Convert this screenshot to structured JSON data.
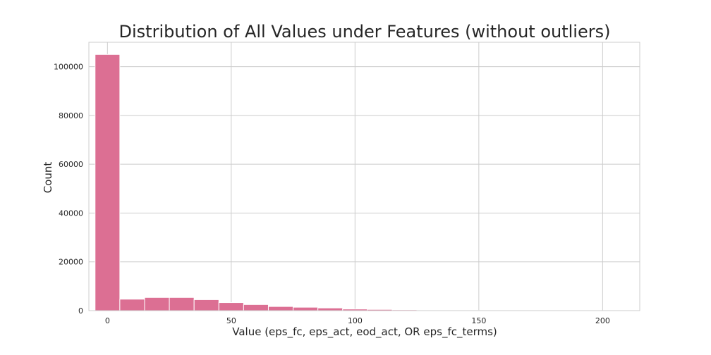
{
  "chart_data": {
    "type": "bar",
    "title": "Distribution of All Values under Features (without outliers)",
    "xlabel": "Value (eps_fc, eps_act, eod_act, OR eps_fc_terms)",
    "ylabel": "Count",
    "xlim": [
      -7.5,
      215
    ],
    "ylim": [
      0,
      110000
    ],
    "x_ticks": [
      {
        "value": 0,
        "label": "0"
      },
      {
        "value": 50,
        "label": "50"
      },
      {
        "value": 100,
        "label": "100"
      },
      {
        "value": 150,
        "label": "150"
      },
      {
        "value": 200,
        "label": "200"
      }
    ],
    "y_ticks": [
      {
        "value": 0,
        "label": "0"
      },
      {
        "value": 20000,
        "label": "20000"
      },
      {
        "value": 40000,
        "label": "40000"
      },
      {
        "value": 60000,
        "label": "60000"
      },
      {
        "value": 80000,
        "label": "80000"
      },
      {
        "value": 100000,
        "label": "100000"
      }
    ],
    "grid": true,
    "bins": [
      {
        "x0": -5,
        "x1": 5,
        "count": 105000
      },
      {
        "x0": 5,
        "x1": 15,
        "count": 4700
      },
      {
        "x0": 15,
        "x1": 25,
        "count": 5400
      },
      {
        "x0": 25,
        "x1": 35,
        "count": 5400
      },
      {
        "x0": 35,
        "x1": 45,
        "count": 4500
      },
      {
        "x0": 45,
        "x1": 55,
        "count": 3300
      },
      {
        "x0": 55,
        "x1": 65,
        "count": 2500
      },
      {
        "x0": 65,
        "x1": 75,
        "count": 1700
      },
      {
        "x0": 75,
        "x1": 85,
        "count": 1400
      },
      {
        "x0": 85,
        "x1": 95,
        "count": 1100
      },
      {
        "x0": 95,
        "x1": 105,
        "count": 650
      },
      {
        "x0": 105,
        "x1": 115,
        "count": 500
      },
      {
        "x0": 115,
        "x1": 125,
        "count": 350
      },
      {
        "x0": 125,
        "x1": 135,
        "count": 200
      },
      {
        "x0": 135,
        "x1": 145,
        "count": 130
      },
      {
        "x0": 145,
        "x1": 155,
        "count": 90
      },
      {
        "x0": 155,
        "x1": 165,
        "count": 60
      },
      {
        "x0": 165,
        "x1": 175,
        "count": 40
      },
      {
        "x0": 175,
        "x1": 185,
        "count": 30
      },
      {
        "x0": 185,
        "x1": 195,
        "count": 20
      },
      {
        "x0": 195,
        "x1": 205,
        "count": 15
      }
    ],
    "colors": {
      "bar": "#dc6f93",
      "bar_edge": "#ffffff",
      "grid": "#cccccc",
      "frame": "#cccccc",
      "text": "#262626"
    }
  }
}
